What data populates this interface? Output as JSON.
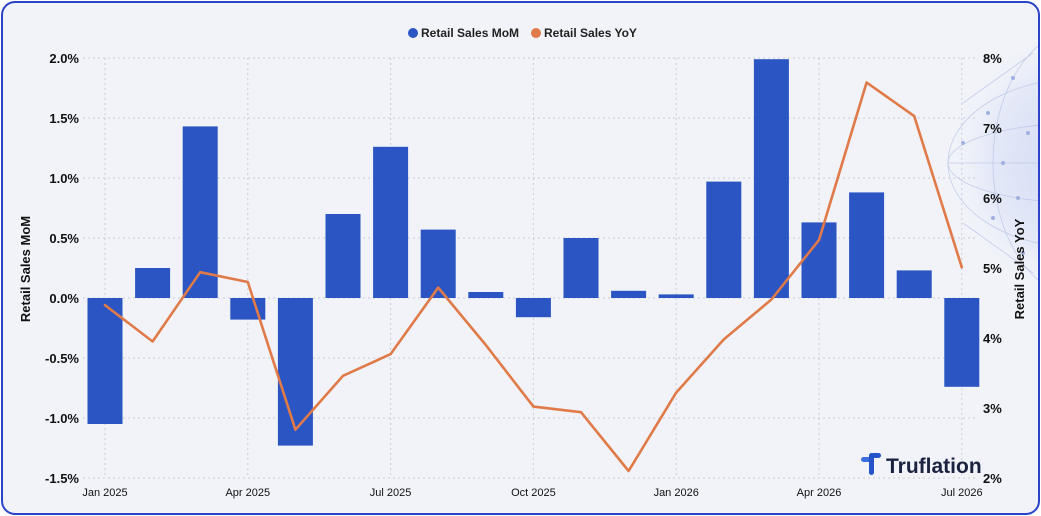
{
  "chart_data": {
    "type": "bar+line",
    "title": "",
    "legend": {
      "placement": "top-center",
      "entries": [
        {
          "name": "Retail Sales MoM",
          "color": "#2a55c3"
        },
        {
          "name": "Retail Sales YoY",
          "color": "#e07a48"
        }
      ]
    },
    "x": [
      "2025-01",
      "2025-02",
      "2025-03",
      "2025-04",
      "2025-05",
      "2025-06",
      "2025-07",
      "2025-08",
      "2025-09",
      "2025-10",
      "2025-11",
      "2025-12",
      "2026-01",
      "2026-02",
      "2026-03",
      "2026-04",
      "2026-05",
      "2026-06",
      "2026-07"
    ],
    "xtick_labels": [
      {
        "index": 0,
        "label": "Jan 2025"
      },
      {
        "index": 3,
        "label": "Apr 2025"
      },
      {
        "index": 6,
        "label": "Jul 2025"
      },
      {
        "index": 9,
        "label": "Oct 2025"
      },
      {
        "index": 12,
        "label": "Jan 2026"
      },
      {
        "index": 15,
        "label": "Apr 2026"
      },
      {
        "index": 18,
        "label": "Jul 2026"
      }
    ],
    "series": [
      {
        "name": "Retail Sales MoM",
        "type": "bar",
        "axis": "left",
        "color": "#2a55c3",
        "values": [
          -1.05,
          0.25,
          1.43,
          -0.18,
          -1.23,
          0.7,
          1.26,
          0.57,
          0.05,
          -0.16,
          0.5,
          0.06,
          0.03,
          0.97,
          1.99,
          0.63,
          0.88,
          0.23,
          -0.74
        ]
      },
      {
        "name": "Retail Sales YoY",
        "type": "line",
        "axis": "right",
        "color": "#e07a48",
        "values": [
          4.47,
          3.95,
          4.94,
          4.8,
          2.69,
          3.46,
          3.77,
          4.72,
          3.9,
          3.02,
          2.94,
          2.1,
          3.22,
          3.98,
          4.55,
          5.4,
          7.65,
          7.17,
          5.01
        ]
      }
    ],
    "left_axis": {
      "label": "Retail Sales MoM",
      "ylim": [
        -1.5,
        2.0
      ],
      "ticks": [
        -1.5,
        -1.0,
        -0.5,
        0.0,
        0.5,
        1.0,
        1.5,
        2.0
      ],
      "tick_labels": [
        "-1.5%",
        "-1.0%",
        "-0.5%",
        "0.0%",
        "0.5%",
        "1.0%",
        "1.5%",
        "2.0%"
      ]
    },
    "right_axis": {
      "label": "Retail Sales YoY",
      "ylim": [
        2,
        8
      ],
      "ticks": [
        2,
        3,
        4,
        5,
        6,
        7,
        8
      ],
      "tick_labels": [
        "2%",
        "3%",
        "4%",
        "5%",
        "6%",
        "7%",
        "8%"
      ]
    },
    "grid": true,
    "brand": "Truflation",
    "colors": {
      "border": "#2a43c9",
      "background": "#f1f3f9",
      "grid": "#c9cdd8"
    }
  }
}
